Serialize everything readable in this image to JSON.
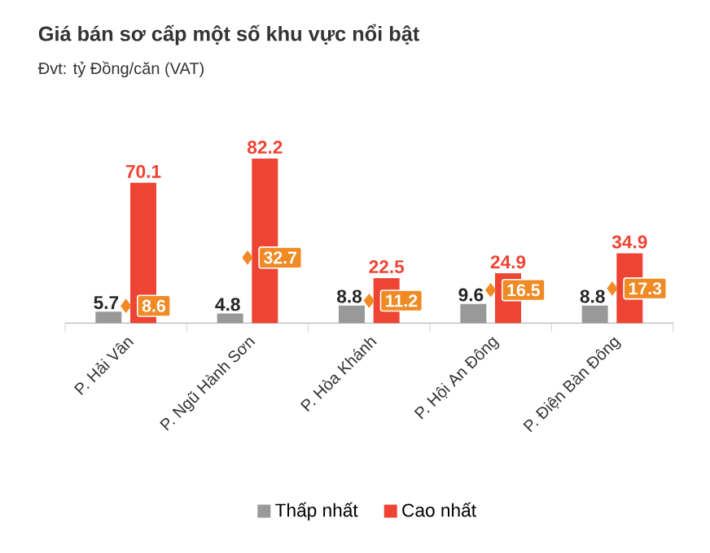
{
  "chart_data": {
    "type": "bar",
    "title": "Giá bán sơ cấp một số khu vực nổi bật",
    "subtitle": "Đvt: tỷ Đồng/căn (VAT)",
    "categories": [
      "P. Hải Vân",
      "P. Ngũ Hành Sơn",
      "P. Hòa Khánh",
      "P. Hội An Đông",
      "P. Điện Bàn Đông"
    ],
    "series": [
      {
        "name": "Thấp nhất",
        "color": "#999999",
        "values": [
          5.7,
          4.8,
          8.8,
          9.6,
          8.8
        ]
      },
      {
        "name": "Cao nhất",
        "color": "#ee4433",
        "values": [
          70.1,
          82.2,
          22.5,
          24.9,
          34.9
        ]
      },
      {
        "type": "scatter",
        "marker": "diamond",
        "color": "#f08a24",
        "values": [
          8.6,
          32.7,
          11.2,
          16.5,
          17.3
        ]
      }
    ],
    "data_labels": true,
    "legend": "bottom"
  }
}
